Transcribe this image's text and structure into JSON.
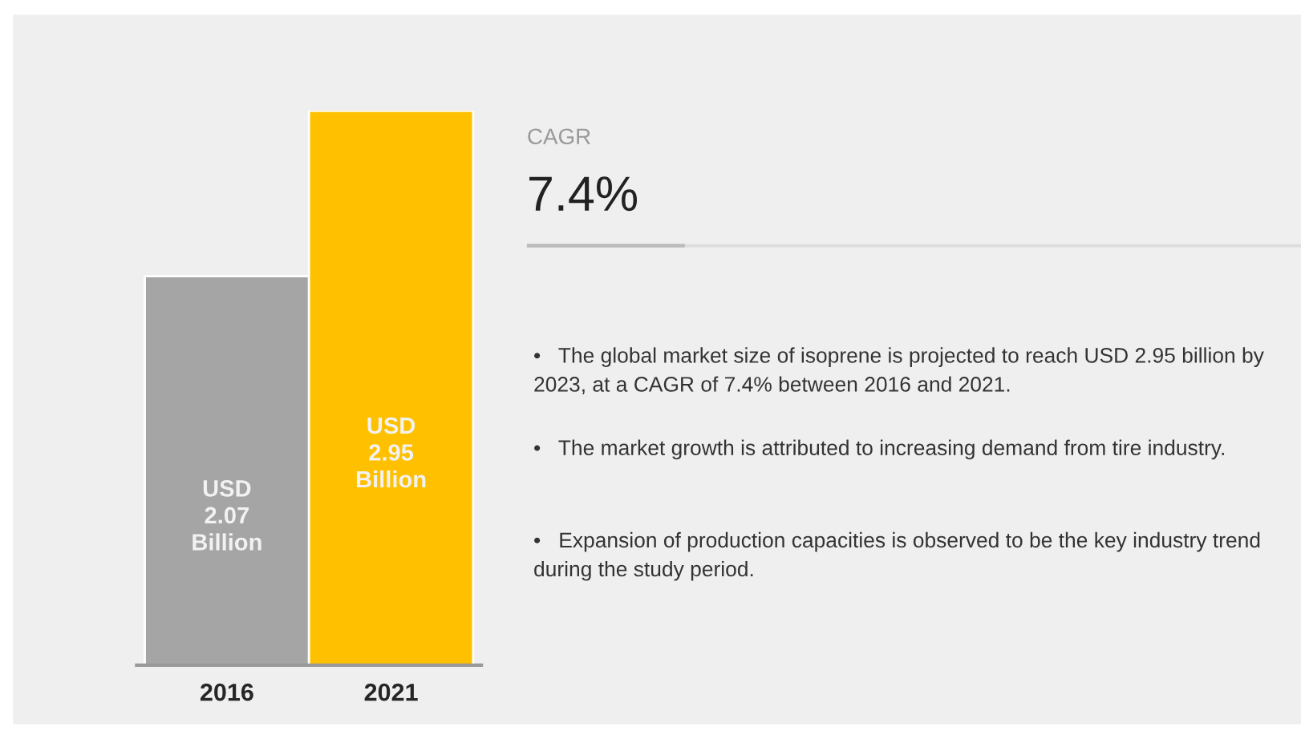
{
  "chart_data": {
    "type": "bar",
    "categories": [
      "2016",
      "2021"
    ],
    "values": [
      2.07,
      2.95
    ],
    "colors": [
      "#a5a5a5",
      "#ffc000"
    ],
    "value_labels": [
      "USD\n2.07\nBillion",
      "USD\n2.95\nBillion"
    ],
    "tick_labels": "x",
    "grid": false,
    "legend": false,
    "annotations": [
      "CAGR",
      "7.4%",
      "•   The global market size of isoprene is projected to reach USD 2.95 billion by 2023, at a CAGR of 7.4% between 2016 and 2021.",
      "•   The market growth is attributed to increasing demand from tire industry.",
      "•   Expansion of production capacities is observed to be the key industry trend during the study period."
    ]
  }
}
